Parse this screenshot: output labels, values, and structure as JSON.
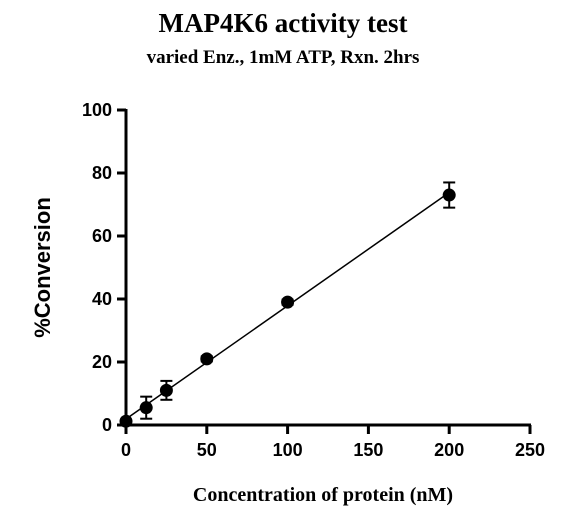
{
  "chart_data": {
    "type": "scatter",
    "title": "MAP4K6 activity test",
    "subtitle": "varied Enz., 1mM ATP, Rxn. 2hrs",
    "xlabel": "Concentration of protein (nM)",
    "ylabel": "%Conversion",
    "xlim": [
      0,
      250
    ],
    "ylim": [
      0,
      100
    ],
    "xticks": [
      0,
      50,
      100,
      150,
      200,
      250
    ],
    "yticks": [
      0,
      20,
      40,
      60,
      80,
      100
    ],
    "grid": false,
    "fit_line": true,
    "series": [
      {
        "x": [
          0,
          12.5,
          25,
          50,
          100,
          200
        ],
        "y": [
          1.2,
          5.5,
          11,
          21,
          39,
          73
        ],
        "error": [
          0.5,
          3.5,
          3,
          0.8,
          0.8,
          4
        ]
      }
    ]
  }
}
